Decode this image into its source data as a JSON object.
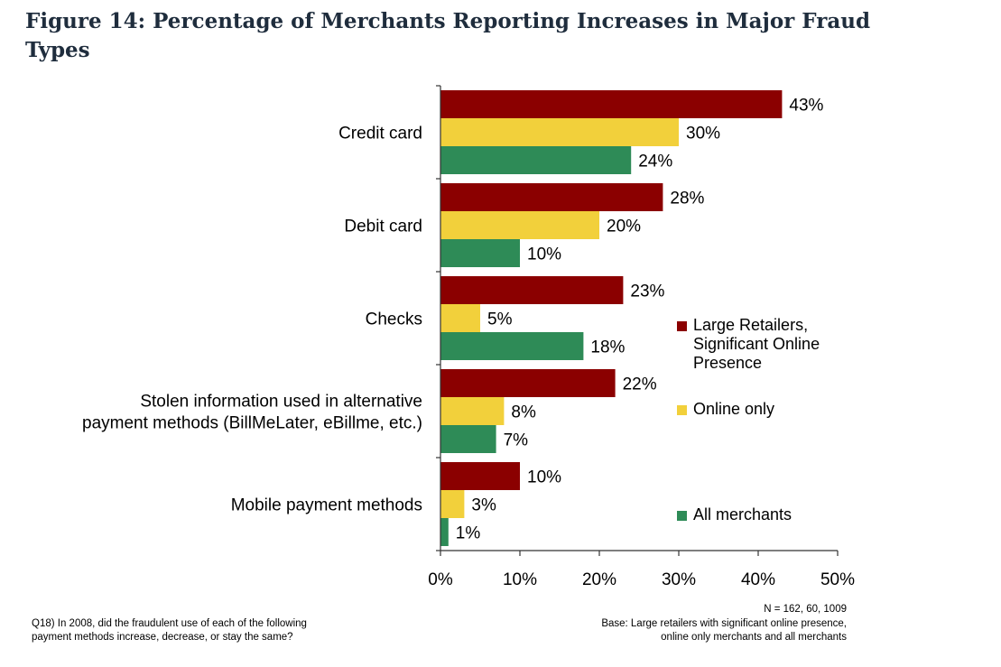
{
  "title_line1": "Figure 14: Percentage of Merchants Reporting Increases in Major Fraud",
  "title_line2": "Types",
  "chart_data": {
    "type": "bar",
    "orientation": "horizontal",
    "categories": [
      [
        "Credit card"
      ],
      [
        "Debit card"
      ],
      [
        "Checks"
      ],
      [
        "Stolen information used in alternative",
        "payment methods (BillMeLater, eBillme, etc.)"
      ],
      [
        "Mobile payment methods"
      ]
    ],
    "series": [
      {
        "name": "Large  Retailers, Significant Online Presence",
        "legend_lines": [
          "Large  Retailers,",
          "Significant Online",
          "Presence"
        ],
        "color": "#8b0000",
        "values": [
          43,
          28,
          23,
          22,
          10
        ]
      },
      {
        "name": "Online only",
        "legend_lines": [
          "Online only"
        ],
        "color": "#f2d03b",
        "values": [
          30,
          20,
          5,
          8,
          3
        ]
      },
      {
        "name": "All merchants",
        "legend_lines": [
          "All merchants"
        ],
        "color": "#2e8b57",
        "values": [
          24,
          10,
          18,
          7,
          1
        ]
      }
    ],
    "xlim": [
      0,
      50
    ],
    "xticks": [
      "0%",
      "10%",
      "20%",
      "30%",
      "40%",
      "50%"
    ],
    "value_suffix": "%",
    "legend_position": "right"
  },
  "footnotes": {
    "n": "N = 162, 60, 1009",
    "base_line1": "Base: Large retailers with significant online presence,",
    "base_line2": "online only merchants and all merchants",
    "question_line1": "Q18) In 2008, did the fraudulent use of each of the following",
    "question_line2": "payment methods increase, decrease, or stay the same?"
  }
}
